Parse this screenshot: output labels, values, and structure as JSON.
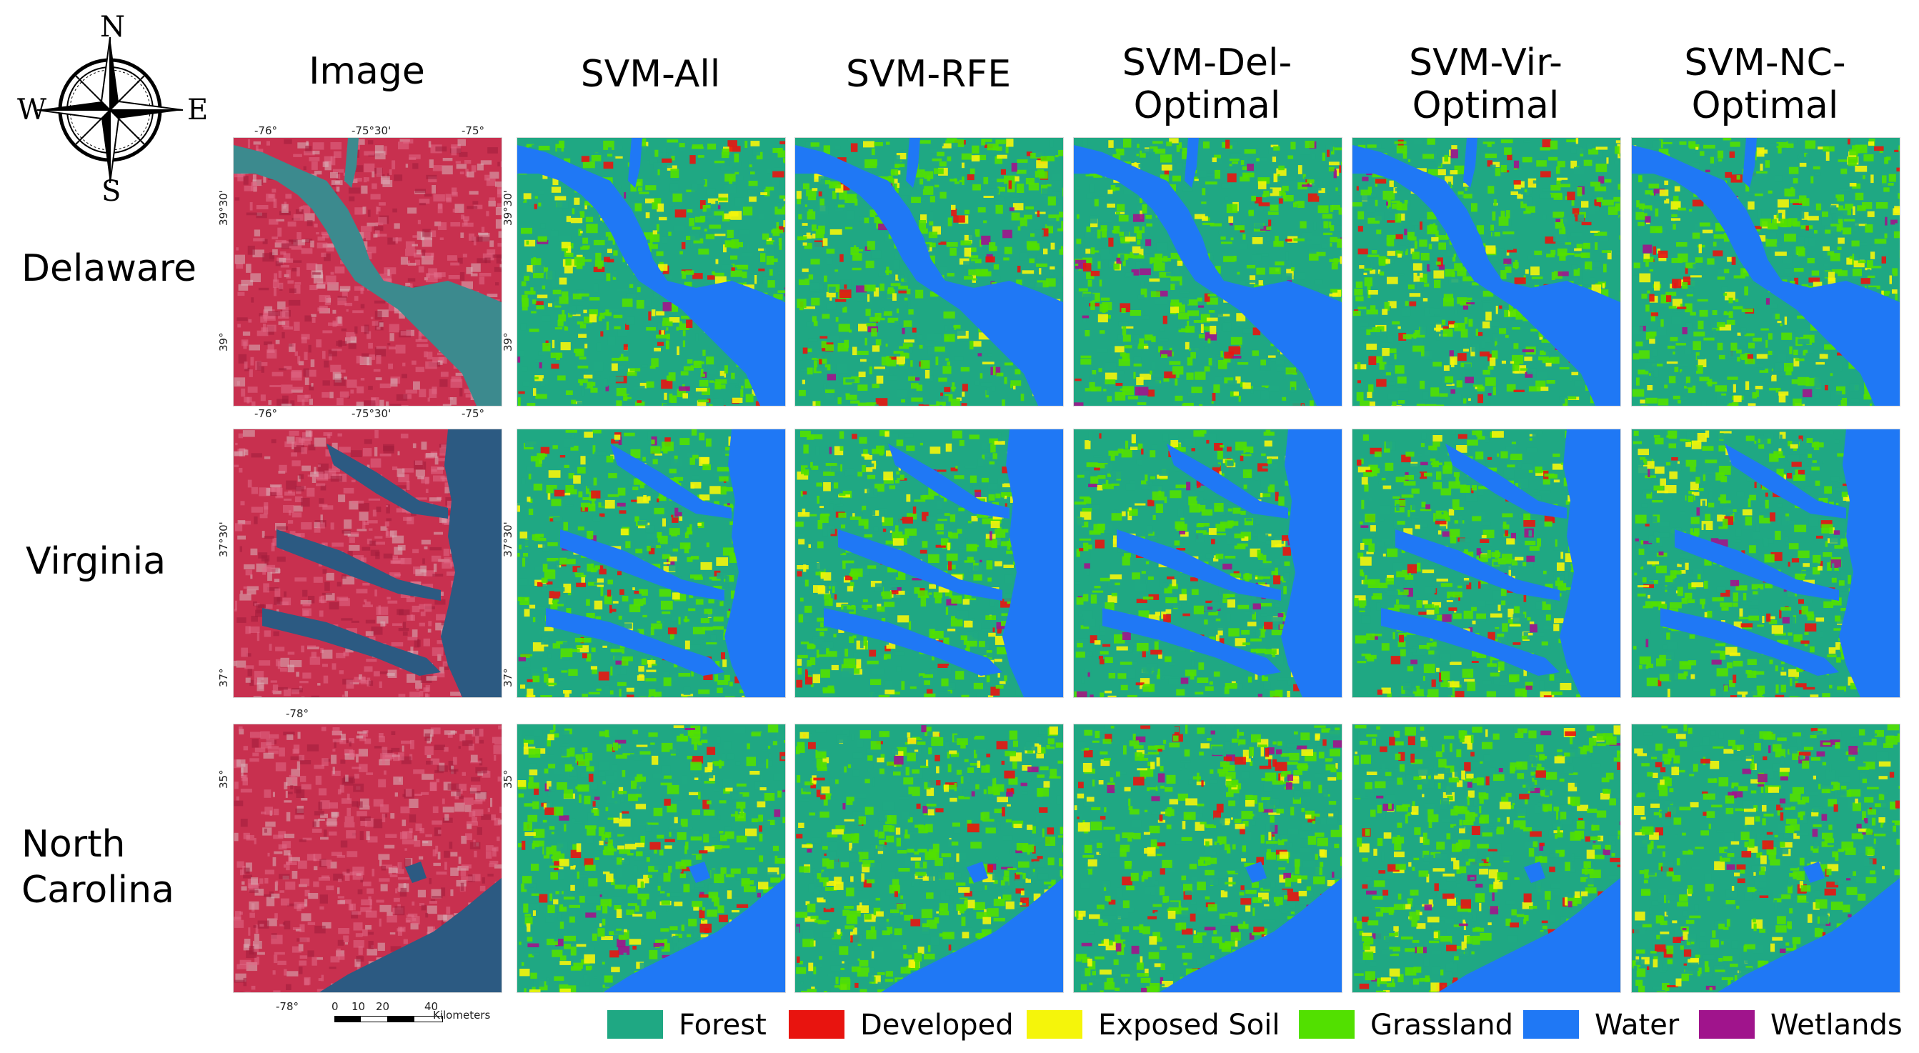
{
  "compass": {
    "n": "N",
    "s": "S",
    "e": "E",
    "w": "W"
  },
  "columns": [
    "Image",
    "SVM-All",
    "SVM-RFE",
    "SVM-Del-\nOptimal",
    "SVM-Vir-\nOptimal",
    "SVM-NC-\nOptimal"
  ],
  "rows": [
    {
      "label": "Delaware",
      "top_ticks": [
        "-76°",
        "-75°30'",
        "-75°"
      ],
      "bottom_ticks": [
        "-76°",
        "-75°30'",
        "-75°"
      ],
      "side_ticks": [
        "39°30'",
        "39°"
      ],
      "map_side_ticks": [
        "39°30'",
        "39°"
      ]
    },
    {
      "label": "Virginia",
      "side_ticks": [
        "37°30'",
        "37°"
      ],
      "map_side_ticks": [
        "37°30'",
        "37°"
      ]
    },
    {
      "label": "North\nCarolina",
      "top_ticks": [
        "-78°"
      ],
      "bottom_ticks": [
        "-78°"
      ],
      "side_ticks": [
        "35°"
      ],
      "map_side_ticks": [
        "35°"
      ]
    }
  ],
  "scalebar": {
    "ticks": [
      "0",
      "10",
      "20",
      "40"
    ],
    "unit": "Kilometers"
  },
  "legend": [
    {
      "label": "Forest",
      "color": "#1fa883"
    },
    {
      "label": "Developed",
      "color": "#e8140f"
    },
    {
      "label": "Exposed Soil",
      "color": "#f5f50a"
    },
    {
      "label": "Grassland",
      "color": "#52e000"
    },
    {
      "label": "Water",
      "color": "#1f78f5"
    },
    {
      "label": "Wetlands",
      "color": "#a0148c"
    }
  ],
  "image_colors": {
    "land": "#c8304f",
    "land_light": "#e06a86",
    "water": "#3c8a8e",
    "ocean": "#2c5a82",
    "urban": "#d8b4bc"
  }
}
